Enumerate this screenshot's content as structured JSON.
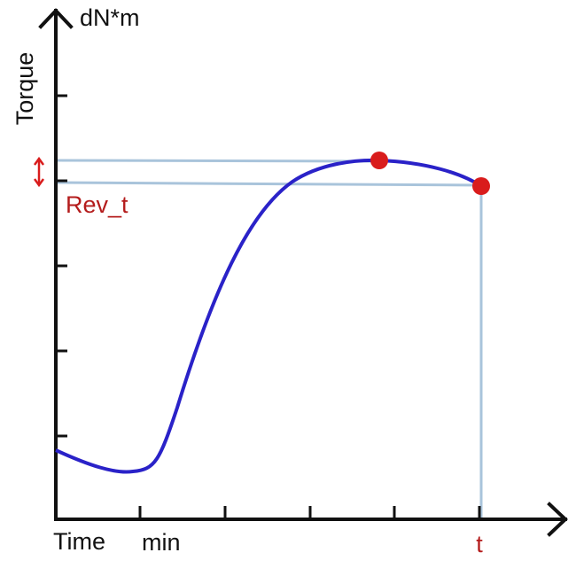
{
  "axes": {
    "y_unit": "dN*m",
    "y_label": "Torque",
    "x_label": "Time",
    "x_unit": "min"
  },
  "annotations": {
    "reversion": "Rev_t",
    "time_mark": "t"
  }
}
